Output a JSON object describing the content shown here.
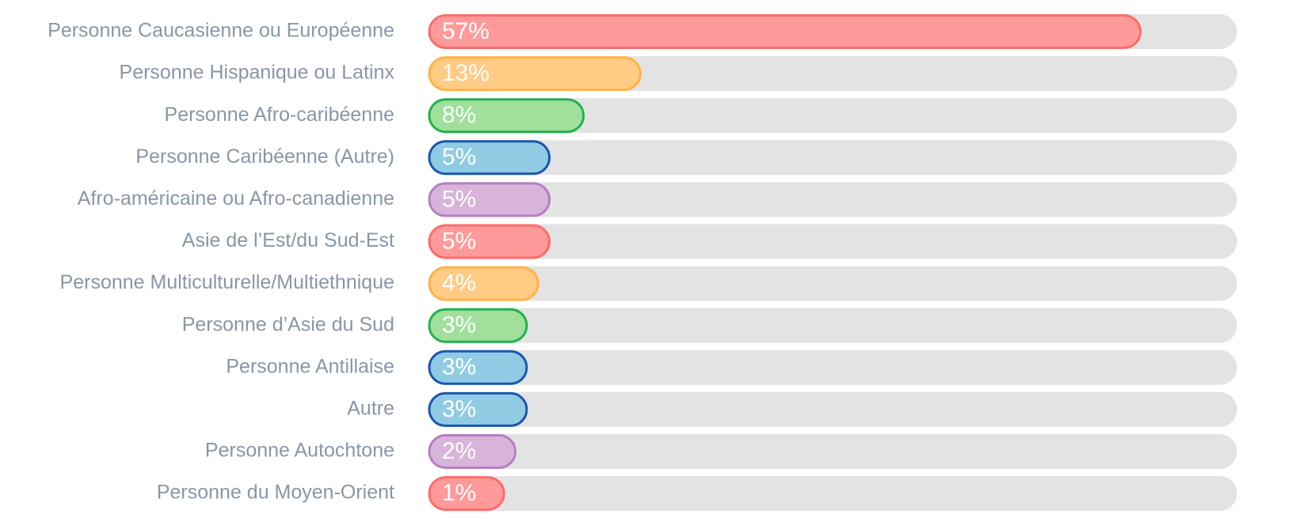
{
  "chart_data": {
    "type": "bar",
    "categories": [
      "Personne Caucasienne ou Européenne",
      "Personne Hispanique ou Latinx",
      "Personne Afro-caribéenne",
      "Personne Caribéenne (Autre)",
      "Afro-américaine ou Afro-canadienne",
      "Asie de l’Est/du Sud-Est",
      "Personne Multiculturelle/Multiethnique",
      "Personne d’Asie du Sud",
      "Personne Antillaise",
      "Autre",
      "Personne Autochtone",
      "Personne du Moyen-Orient"
    ],
    "values": [
      57,
      13,
      8,
      5,
      5,
      5,
      4,
      3,
      3,
      3,
      2,
      1
    ],
    "value_labels": [
      "57%",
      "13%",
      "8%",
      "5%",
      "5%",
      "5%",
      "4%",
      "3%",
      "3%",
      "3%",
      "2%",
      "1%"
    ],
    "colors": [
      "#ff9a9a",
      "#ffcb85",
      "#a0e09c",
      "#90cbe3",
      "#d8b4da",
      "#ff9a9a",
      "#ffcb85",
      "#a0e09c",
      "#90cbe3",
      "#90cbe3",
      "#d8b4da",
      "#ff9a9a"
    ],
    "edge_colors": [
      "#ff6b6b",
      "#ffb347",
      "#22b14c",
      "#1a56b0",
      "#b57fc0",
      "#ff6b6b",
      "#ffb347",
      "#22b14c",
      "#1a56b0",
      "#1a56b0",
      "#b57fc0",
      "#ff6b6b"
    ],
    "track_color": "#e3e3e3"
  }
}
